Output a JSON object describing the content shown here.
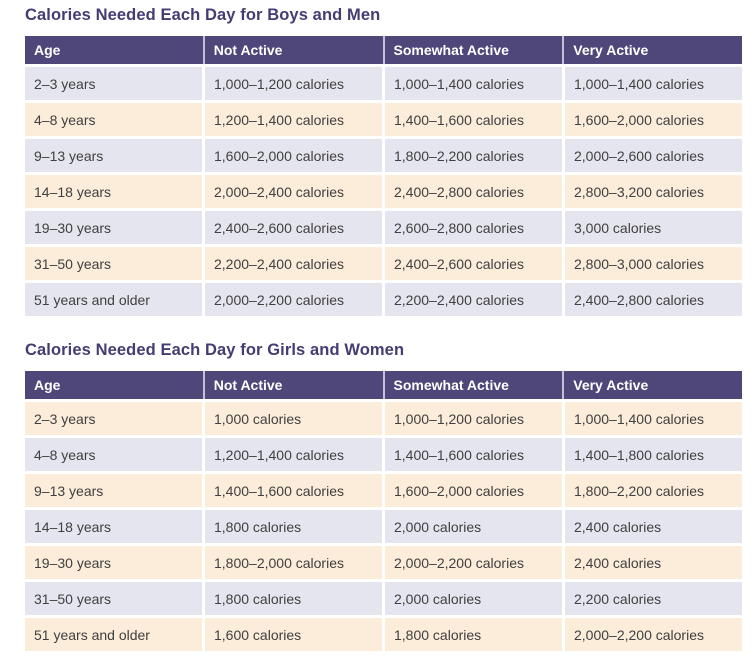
{
  "colors": {
    "header_bg": "#4f4779",
    "header_separator": "#c3c1d6",
    "title_text": "#443d73",
    "row_lavender": "#e5e5ef",
    "row_peach": "#fcecda",
    "body_text": "#404040"
  },
  "tables": [
    {
      "title": "Calories Needed Each Day for Boys and Men",
      "headers": [
        "Age",
        "Not Active",
        "Somewhat Active",
        "Very Active"
      ],
      "first_row_shade": "lavender",
      "rows": [
        [
          "2–3 years",
          "1,000–1,200 calories",
          "1,000–1,400 calories",
          "1,000–1,400 calories"
        ],
        [
          "4–8 years",
          "1,200–1,400 calories",
          "1,400–1,600 calories",
          "1,600–2,000 calories"
        ],
        [
          "9–13 years",
          "1,600–2,000 calories",
          "1,800–2,200 calories",
          "2,000–2,600 calories"
        ],
        [
          "14–18 years",
          "2,000–2,400 calories",
          "2,400–2,800 calories",
          "2,800–3,200 calories"
        ],
        [
          "19–30 years",
          "2,400–2,600 calories",
          "2,600–2,800 calories",
          "3,000 calories"
        ],
        [
          "31–50 years",
          "2,200–2,400 calories",
          "2,400–2,600 calories",
          "2,800–3,000 calories"
        ],
        [
          "51 years and older",
          "2,000–2,200 calories",
          "2,200–2,400 calories",
          "2,400–2,800 calories"
        ]
      ]
    },
    {
      "title": "Calories Needed Each Day for Girls and Women",
      "headers": [
        "Age",
        "Not Active",
        "Somewhat Active",
        "Very Active"
      ],
      "first_row_shade": "peach",
      "rows": [
        [
          "2–3 years",
          "1,000 calories",
          "1,000–1,200 calories",
          "1,000–1,400 calories"
        ],
        [
          "4–8 years",
          "1,200–1,400 calories",
          "1,400–1,600 calories",
          "1,400–1,800 calories"
        ],
        [
          "9–13 years",
          "1,400–1,600 calories",
          "1,600–2,000 calories",
          "1,800–2,200 calories"
        ],
        [
          "14–18 years",
          "1,800 calories",
          "2,000 calories",
          "2,400 calories"
        ],
        [
          "19–30 years",
          "1,800–2,000 calories",
          "2,000–2,200 calories",
          "2,400 calories"
        ],
        [
          "31–50 years",
          "1,800 calories",
          "2,000 calories",
          "2,200 calories"
        ],
        [
          "51 years and older",
          "1,600 calories",
          "1,800 calories",
          "2,000–2,200 calories"
        ]
      ]
    }
  ]
}
